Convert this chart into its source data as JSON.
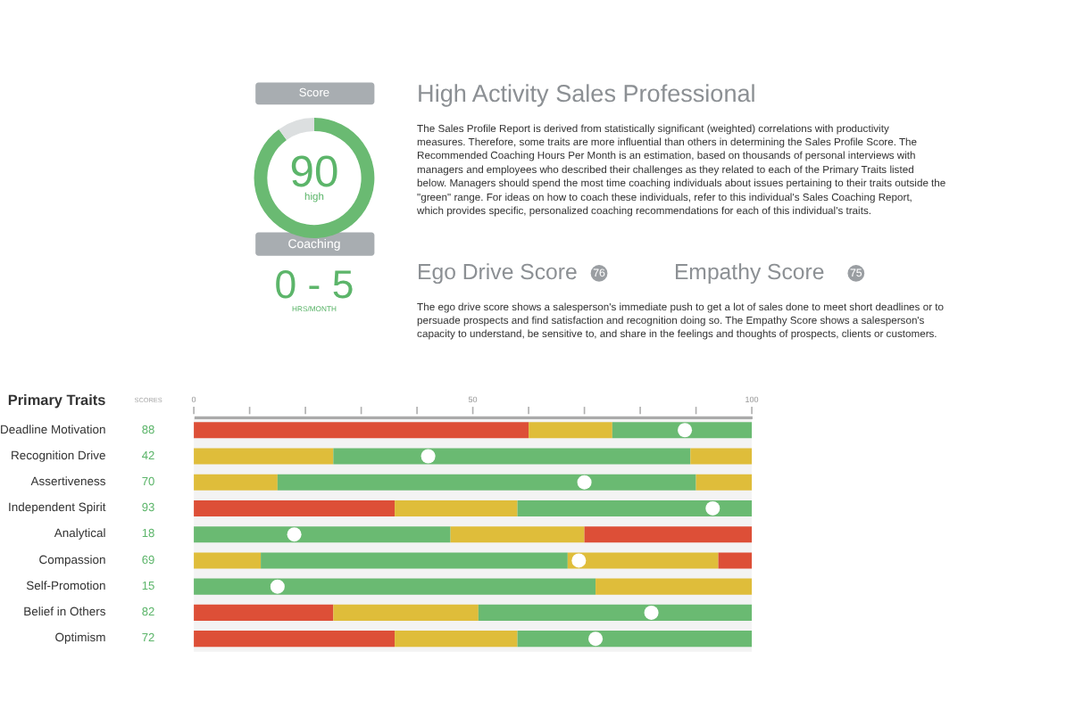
{
  "chart_data": [
    {
      "type": "donut",
      "title": "Score",
      "categories": [
        null,
        null
      ],
      "values": [
        90,
        10
      ],
      "colors": [
        "#6aba72",
        "#dcdfe0"
      ],
      "annotations": [
        "90",
        "high",
        "Coaching",
        "0 - 5",
        "HRS/MONTH"
      ]
    },
    {
      "type": "other",
      "title": "High Activity Sales Professional",
      "annotations": [
        "The Sales Profile Report is derived from statistically significant (weighted) correlations with productivity",
        "measures. Therefore, some traits are more influential than others in determining the Sales Profile Score. The",
        "Recommended Coaching Hours Per Month is an estimation, based on thousands of personal interviews with",
        "managers and employees who described their challenges as they related to each of the Primary Traits listed",
        "below. Managers should spend the most time coaching individuals about issues pertaining to their traits outside the",
        "\"green\" range. For ideas on how to coach these individuals, refer to this individual's Sales Coaching Report,",
        "which provides specific, personalized coaching recommendations for each of this individual's traits.",
        "Ego Drive Score",
        "76",
        "Empathy Score",
        "75",
        "The ego drive score shows a salesperson's immediate push to get a lot of sales done to meet short deadlines or to",
        "persuade prospects and find satisfaction and recognition doing so. The Empathy Score shows a salesperson's",
        "capacity to understand, be sensitive to, and share in the feelings and thoughts of prospects, clients or customers."
      ]
    },
    {
      "type": "bar",
      "title": "Primary Traits",
      "orientation": "horizontal",
      "stacked": true,
      "grid": false,
      "annotations": [
        "SCORES"
      ],
      "categories": [
        "Deadline Motivation",
        "Recognition Drive",
        "Assertiveness",
        "Independent Spirit",
        "Analytical",
        "Compassion",
        "Self-Promotion",
        "Belief in Others",
        "Optimism"
      ],
      "xlim": [
        0,
        100
      ],
      "xticks": [
        0,
        {
          "value": 10,
          "label": null
        },
        {
          "value": 20,
          "label": null
        },
        {
          "value": 30,
          "label": null
        },
        {
          "value": 40,
          "label": null
        },
        50,
        {
          "value": 60,
          "label": null
        },
        {
          "value": 70,
          "label": null
        },
        {
          "value": 80,
          "label": null
        },
        {
          "value": 90,
          "label": null
        },
        100
      ],
      "series": [
        {
          "values": [
            60,
            25,
            15,
            36,
            46,
            12,
            72,
            25,
            36
          ],
          "colors": [
            "#dd4f37",
            "#dfbd3a",
            "#dfbd3a",
            "#dd4f37",
            "#6aba72",
            "#dfbd3a",
            "#6aba72",
            "#dd4f37",
            "#dd4f37"
          ]
        },
        {
          "values": [
            15,
            64,
            75,
            22,
            24,
            55,
            28,
            26,
            22
          ],
          "colors": [
            "#dfbd3a",
            "#6aba72",
            "#6aba72",
            "#dfbd3a",
            "#dfbd3a",
            "#6aba72",
            "#dfbd3a",
            "#dfbd3a",
            "#dfbd3a"
          ]
        },
        {
          "values": [
            25,
            11,
            10,
            42,
            30,
            27,
            null,
            49,
            42
          ],
          "colors": [
            "#6aba72",
            "#dfbd3a",
            "#dfbd3a",
            "#6aba72",
            "#dd4f37",
            "#dfbd3a",
            null,
            "#6aba72",
            "#6aba72"
          ]
        },
        {
          "values": [
            null,
            null,
            null,
            null,
            null,
            6,
            null,
            null,
            null
          ],
          "colors": [
            null,
            null,
            null,
            null,
            null,
            "#dd4f37",
            null,
            null,
            null
          ]
        },
        {
          "type": "scatter",
          "marker": "circle",
          "color": "#ffffff",
          "values": [
            88,
            42,
            70,
            93,
            18,
            69,
            15,
            82,
            72
          ],
          "value_labels": [
            "88",
            "42",
            "70",
            "93",
            "18",
            "69",
            "15",
            "82",
            "72"
          ]
        }
      ]
    }
  ]
}
